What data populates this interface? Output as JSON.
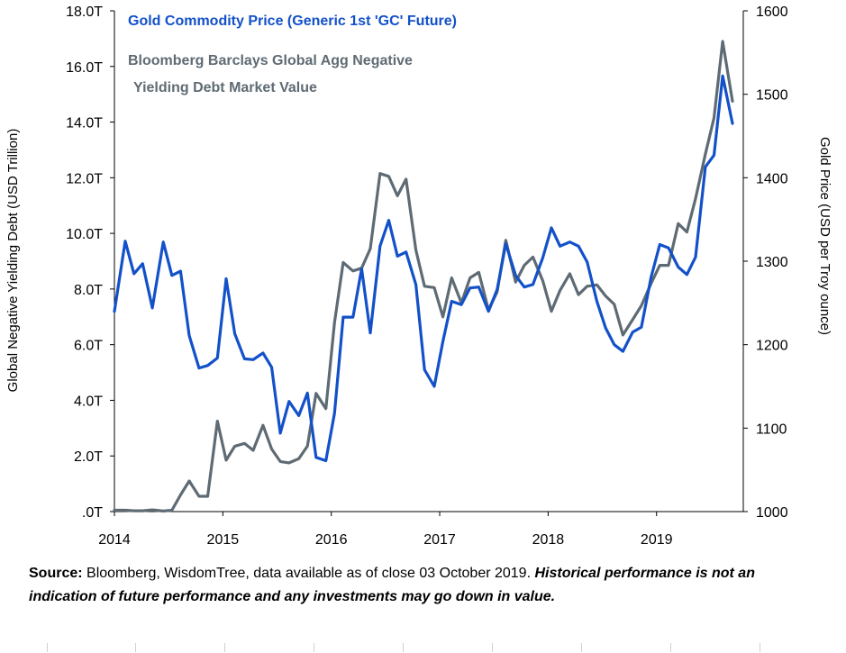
{
  "chart_data": {
    "type": "line",
    "legend": {
      "gold": "Gold Commodity Price (Generic 1st 'GC' Future)",
      "debt_line1": "Bloomberg Barclays Global Agg Negative",
      "debt_line2": "Yielding Debt Market Value"
    },
    "left_axis": {
      "label": "Global Negative Yielding Debt (USD Trillion)",
      "range": [
        0,
        18
      ],
      "ticks": [
        {
          "v": 0,
          "label": ".0T"
        },
        {
          "v": 2,
          "label": "2.0T"
        },
        {
          "v": 4,
          "label": "4.0T"
        },
        {
          "v": 6,
          "label": "6.0T"
        },
        {
          "v": 8,
          "label": "8.0T"
        },
        {
          "v": 10,
          "label": "10.0T"
        },
        {
          "v": 12,
          "label": "12.0T"
        },
        {
          "v": 14,
          "label": "14.0T"
        },
        {
          "v": 16,
          "label": "16.0T"
        },
        {
          "v": 18,
          "label": "18.0T"
        }
      ]
    },
    "right_axis": {
      "label": "Gold Price (USD per Troy ounce)",
      "range": [
        1000,
        1600
      ],
      "ticks": [
        {
          "v": 1000,
          "label": "1000"
        },
        {
          "v": 1100,
          "label": "1100"
        },
        {
          "v": 1200,
          "label": "1200"
        },
        {
          "v": 1300,
          "label": "1300"
        },
        {
          "v": 1400,
          "label": "1400"
        },
        {
          "v": 1500,
          "label": "1500"
        },
        {
          "v": 1600,
          "label": "1600"
        }
      ]
    },
    "x_axis": {
      "range": [
        2014,
        2019.8
      ],
      "ticks": [
        {
          "v": 2014,
          "label": "2014"
        },
        {
          "v": 2015,
          "label": "2015"
        },
        {
          "v": 2016,
          "label": "2016"
        },
        {
          "v": 2017,
          "label": "2017"
        },
        {
          "v": 2018,
          "label": "2018"
        },
        {
          "v": 2019,
          "label": "2019"
        }
      ]
    },
    "series": [
      {
        "name": "Gold Commodity Price (Generic 1st 'GC' Future)",
        "axis": "right",
        "color": "#1351c9",
        "points": [
          [
            2014.0,
            1240
          ],
          [
            2014.1,
            1324
          ],
          [
            2014.18,
            1285
          ],
          [
            2014.26,
            1297
          ],
          [
            2014.35,
            1244
          ],
          [
            2014.45,
            1323
          ],
          [
            2014.53,
            1283
          ],
          [
            2014.61,
            1288
          ],
          [
            2014.69,
            1211
          ],
          [
            2014.78,
            1172
          ],
          [
            2014.86,
            1175
          ],
          [
            2014.95,
            1184
          ],
          [
            2015.03,
            1279
          ],
          [
            2015.11,
            1213
          ],
          [
            2015.2,
            1183
          ],
          [
            2015.28,
            1182
          ],
          [
            2015.37,
            1190
          ],
          [
            2015.45,
            1173
          ],
          [
            2015.53,
            1094
          ],
          [
            2015.61,
            1132
          ],
          [
            2015.7,
            1115
          ],
          [
            2015.78,
            1142
          ],
          [
            2015.86,
            1065
          ],
          [
            2015.95,
            1061
          ],
          [
            2016.03,
            1118
          ],
          [
            2016.11,
            1233
          ],
          [
            2016.2,
            1233
          ],
          [
            2016.28,
            1291
          ],
          [
            2016.36,
            1214
          ],
          [
            2016.45,
            1318
          ],
          [
            2016.53,
            1349
          ],
          [
            2016.61,
            1306
          ],
          [
            2016.69,
            1311
          ],
          [
            2016.78,
            1272
          ],
          [
            2016.86,
            1170
          ],
          [
            2016.95,
            1150
          ],
          [
            2017.03,
            1204
          ],
          [
            2017.11,
            1252
          ],
          [
            2017.2,
            1248
          ],
          [
            2017.28,
            1268
          ],
          [
            2017.36,
            1269
          ],
          [
            2017.45,
            1240
          ],
          [
            2017.53,
            1266
          ],
          [
            2017.61,
            1321
          ],
          [
            2017.7,
            1283
          ],
          [
            2017.78,
            1269
          ],
          [
            2017.86,
            1272
          ],
          [
            2017.95,
            1304
          ],
          [
            2018.03,
            1340
          ],
          [
            2018.11,
            1318
          ],
          [
            2018.2,
            1323
          ],
          [
            2018.28,
            1318
          ],
          [
            2018.36,
            1299
          ],
          [
            2018.45,
            1252
          ],
          [
            2018.53,
            1220
          ],
          [
            2018.61,
            1200
          ],
          [
            2018.69,
            1192
          ],
          [
            2018.78,
            1215
          ],
          [
            2018.86,
            1221
          ],
          [
            2018.95,
            1281
          ],
          [
            2019.03,
            1320
          ],
          [
            2019.11,
            1316
          ],
          [
            2019.2,
            1293
          ],
          [
            2019.28,
            1284
          ],
          [
            2019.36,
            1305
          ],
          [
            2019.45,
            1413
          ],
          [
            2019.53,
            1427
          ],
          [
            2019.61,
            1522
          ],
          [
            2019.7,
            1465
          ]
        ]
      },
      {
        "name": "Bloomberg Barclays Global Agg Negative Yielding Debt Market Value",
        "axis": "left",
        "color": "#5f6b74",
        "points": [
          [
            2014.0,
            0.05
          ],
          [
            2014.1,
            0.05
          ],
          [
            2014.18,
            0.03
          ],
          [
            2014.26,
            0.03
          ],
          [
            2014.35,
            0.06
          ],
          [
            2014.45,
            0.02
          ],
          [
            2014.53,
            0.05
          ],
          [
            2014.61,
            0.6
          ],
          [
            2014.69,
            1.1
          ],
          [
            2014.78,
            0.55
          ],
          [
            2014.86,
            0.55
          ],
          [
            2014.95,
            3.25
          ],
          [
            2015.03,
            1.85
          ],
          [
            2015.11,
            2.35
          ],
          [
            2015.2,
            2.45
          ],
          [
            2015.28,
            2.2
          ],
          [
            2015.37,
            3.1
          ],
          [
            2015.45,
            2.25
          ],
          [
            2015.53,
            1.8
          ],
          [
            2015.61,
            1.75
          ],
          [
            2015.7,
            1.9
          ],
          [
            2015.78,
            2.35
          ],
          [
            2015.86,
            4.25
          ],
          [
            2015.95,
            3.7
          ],
          [
            2016.03,
            6.8
          ],
          [
            2016.11,
            8.95
          ],
          [
            2016.2,
            8.65
          ],
          [
            2016.28,
            8.75
          ],
          [
            2016.36,
            9.45
          ],
          [
            2016.45,
            12.15
          ],
          [
            2016.53,
            12.05
          ],
          [
            2016.61,
            11.35
          ],
          [
            2016.69,
            11.95
          ],
          [
            2016.78,
            9.4
          ],
          [
            2016.86,
            8.1
          ],
          [
            2016.95,
            8.05
          ],
          [
            2017.03,
            7.0
          ],
          [
            2017.11,
            8.4
          ],
          [
            2017.2,
            7.5
          ],
          [
            2017.28,
            8.4
          ],
          [
            2017.36,
            8.6
          ],
          [
            2017.45,
            7.25
          ],
          [
            2017.53,
            7.9
          ],
          [
            2017.61,
            9.75
          ],
          [
            2017.7,
            8.25
          ],
          [
            2017.78,
            8.85
          ],
          [
            2017.86,
            9.15
          ],
          [
            2017.95,
            8.3
          ],
          [
            2018.03,
            7.2
          ],
          [
            2018.11,
            7.95
          ],
          [
            2018.2,
            8.55
          ],
          [
            2018.28,
            7.8
          ],
          [
            2018.36,
            8.1
          ],
          [
            2018.45,
            8.15
          ],
          [
            2018.53,
            7.75
          ],
          [
            2018.61,
            7.45
          ],
          [
            2018.69,
            6.35
          ],
          [
            2018.78,
            6.9
          ],
          [
            2018.86,
            7.4
          ],
          [
            2018.95,
            8.2
          ],
          [
            2019.03,
            8.85
          ],
          [
            2019.11,
            8.85
          ],
          [
            2019.2,
            10.35
          ],
          [
            2019.28,
            10.05
          ],
          [
            2019.36,
            11.25
          ],
          [
            2019.45,
            12.85
          ],
          [
            2019.53,
            14.15
          ],
          [
            2019.61,
            16.9
          ],
          [
            2019.7,
            14.75
          ]
        ]
      }
    ]
  },
  "source": {
    "label": "Source:",
    "text": " Bloomberg, WisdomTree, data available as of close 03 October 2019. ",
    "disclaimer": "Historical performance is not an indication of future performance and any investments may go down in value."
  }
}
